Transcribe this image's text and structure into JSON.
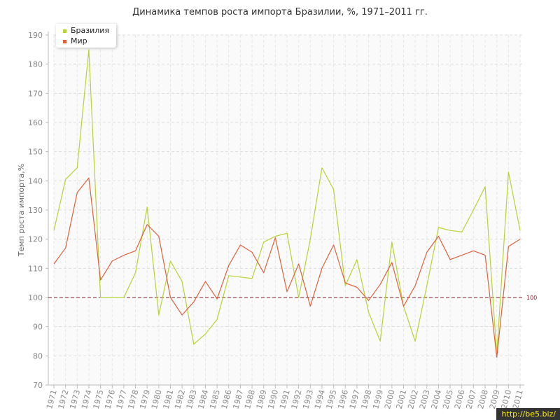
{
  "chart_data": {
    "type": "line",
    "title": "Динамика темпов роста импорта Бразилии, %, 1971–2011 гг.",
    "ylabel": "Темп роста импорта,%",
    "xlabel": "",
    "ylim": [
      70,
      190
    ],
    "yticks": [
      70,
      80,
      90,
      100,
      110,
      120,
      130,
      140,
      150,
      160,
      170,
      180,
      190
    ],
    "grid": true,
    "legend_position": "top-left",
    "x": [
      1971,
      1972,
      1973,
      1974,
      1975,
      1976,
      1977,
      1978,
      1979,
      1980,
      1981,
      1982,
      1983,
      1984,
      1985,
      1986,
      1987,
      1988,
      1989,
      1990,
      1991,
      1992,
      1993,
      1994,
      1995,
      1996,
      1997,
      1998,
      1999,
      2000,
      2001,
      2002,
      2003,
      2004,
      2005,
      2006,
      2007,
      2008,
      2009,
      2010,
      2011
    ],
    "series": [
      {
        "name": "Бразилия",
        "color": "#b5d334",
        "values": [
          123,
          140.5,
          144.5,
          185,
          100,
          100,
          100,
          108.5,
          131,
          94,
          112.5,
          105.5,
          84,
          87.5,
          92.5,
          107.5,
          107,
          106.5,
          119,
          121,
          122,
          100,
          120,
          144.5,
          137,
          104,
          113,
          95,
          85,
          119,
          97,
          85,
          104,
          124,
          123,
          122.5,
          130,
          138,
          80.5,
          143,
          123
        ]
      },
      {
        "name": "Мир",
        "color": "#e0603a",
        "values": [
          111.5,
          117,
          136,
          141,
          106,
          112.5,
          114.5,
          116,
          125,
          121,
          100,
          94,
          98.5,
          105.5,
          99.5,
          111,
          118,
          115.5,
          108.5,
          120.5,
          102,
          111.5,
          97,
          110,
          118,
          105,
          103.5,
          99,
          104.5,
          112,
          97,
          104,
          115.5,
          121,
          113,
          114.5,
          116,
          114.5,
          79.5,
          117.5,
          120
        ]
      }
    ],
    "reference_line": {
      "value": 100,
      "label": "100",
      "color": "#8b1a2b"
    }
  },
  "watermark": "http://be5.biz/"
}
